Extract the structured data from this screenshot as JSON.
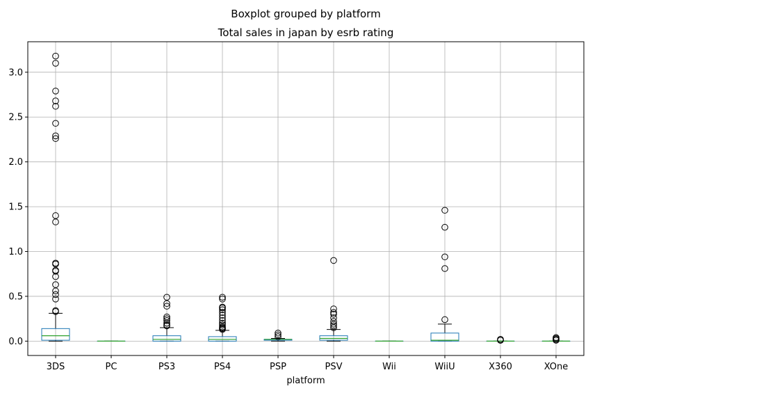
{
  "chart_data": {
    "type": "boxplot",
    "suptitle": "Boxplot grouped by platform",
    "title": "Total sales in japan by esrb rating",
    "xlabel": "platform",
    "ylabel": "",
    "ylim": [
      -0.16,
      3.34
    ],
    "yticks": [
      0.0,
      0.5,
      1.0,
      1.5,
      2.0,
      2.5,
      3.0
    ],
    "ytick_labels": [
      "0.0",
      "0.5",
      "1.0",
      "1.5",
      "2.0",
      "2.5",
      "3.0"
    ],
    "grid": true,
    "colors": {
      "box": "#1f77b4",
      "median": "#2ca02c",
      "whisker": "#000000",
      "grid": "#b0b0b0"
    },
    "categories": [
      "3DS",
      "PC",
      "PS3",
      "PS4",
      "PSP",
      "PSV",
      "Wii",
      "WiiU",
      "X360",
      "XOne"
    ],
    "boxes": [
      {
        "label": "3DS",
        "whislo": 0.0,
        "q1": 0.01,
        "med": 0.06,
        "q3": 0.14,
        "whishi": 0.31,
        "fliers": [
          3.18,
          3.1,
          2.79,
          2.68,
          2.62,
          2.43,
          2.29,
          2.26,
          1.4,
          1.33,
          0.87,
          0.86,
          0.79,
          0.78,
          0.72,
          0.63,
          0.56,
          0.52,
          0.47,
          0.34,
          0.33
        ]
      },
      {
        "label": "PC",
        "whislo": 0.0,
        "q1": 0.0,
        "med": 0.0,
        "q3": 0.0,
        "whishi": 0.0,
        "fliers": []
      },
      {
        "label": "PS3",
        "whislo": 0.0,
        "q1": 0.0,
        "med": 0.02,
        "q3": 0.06,
        "whishi": 0.15,
        "fliers": [
          0.49,
          0.42,
          0.39,
          0.27,
          0.25,
          0.23,
          0.2,
          0.18,
          0.17
        ]
      },
      {
        "label": "PS4",
        "whislo": 0.0,
        "q1": 0.0,
        "med": 0.02,
        "q3": 0.05,
        "whishi": 0.12,
        "fliers": [
          0.49,
          0.47,
          0.38,
          0.37,
          0.35,
          0.32,
          0.29,
          0.26,
          0.23,
          0.2,
          0.18,
          0.16,
          0.15,
          0.14,
          0.13
        ]
      },
      {
        "label": "PSP",
        "whislo": 0.0,
        "q1": 0.01,
        "med": 0.02,
        "q3": 0.02,
        "whishi": 0.03,
        "fliers": [
          0.09,
          0.07,
          0.05
        ]
      },
      {
        "label": "PSV",
        "whislo": 0.0,
        "q1": 0.01,
        "med": 0.03,
        "q3": 0.06,
        "whishi": 0.13,
        "fliers": [
          0.9,
          0.36,
          0.32,
          0.3,
          0.26,
          0.22,
          0.19,
          0.17,
          0.15
        ]
      },
      {
        "label": "Wii",
        "whislo": 0.0,
        "q1": 0.0,
        "med": 0.0,
        "q3": 0.0,
        "whishi": 0.0,
        "fliers": []
      },
      {
        "label": "WiiU",
        "whislo": 0.0,
        "q1": 0.0,
        "med": 0.01,
        "q3": 0.09,
        "whishi": 0.19,
        "fliers": [
          1.46,
          1.27,
          0.94,
          0.81,
          0.24
        ]
      },
      {
        "label": "X360",
        "whislo": 0.0,
        "q1": 0.0,
        "med": 0.0,
        "q3": 0.0,
        "whishi": 0.0,
        "fliers": [
          0.02,
          0.01,
          0.01
        ]
      },
      {
        "label": "XOne",
        "whislo": 0.0,
        "q1": 0.0,
        "med": 0.0,
        "q3": 0.0,
        "whishi": 0.0,
        "fliers": [
          0.04,
          0.03,
          0.02,
          0.01
        ]
      }
    ]
  }
}
